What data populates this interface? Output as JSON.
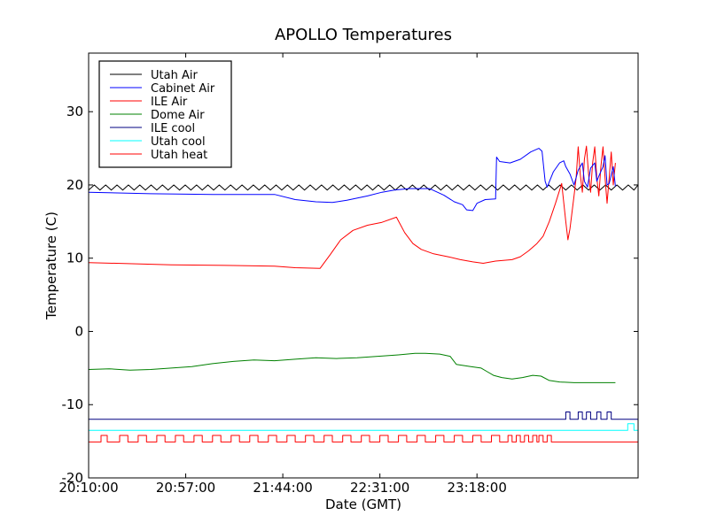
{
  "chart_data": {
    "type": "line",
    "title": "APOLLO Temperatures",
    "xlabel": "Date (GMT)",
    "ylabel": "Temperature (C)",
    "xlim": [
      0,
      266
    ],
    "ylim": [
      -20,
      38
    ],
    "x_ticks": [
      {
        "value": 0,
        "label": "20:10:00"
      },
      {
        "value": 47,
        "label": "20:57:00"
      },
      {
        "value": 94,
        "label": "21:44:00"
      },
      {
        "value": 141,
        "label": "22:31:00"
      },
      {
        "value": 188,
        "label": "23:18:00"
      }
    ],
    "y_ticks": [
      -20,
      -10,
      0,
      10,
      20,
      30
    ],
    "legend_position": "top-left",
    "series": [
      {
        "name": "Utah Air",
        "color": "#000000",
        "kind": "sawtooth",
        "x_start": 0,
        "x_end": 266,
        "period": 5.5,
        "low": 19.3,
        "high": 20.0
      },
      {
        "name": "Cabinet Air",
        "color": "#0000ff",
        "points": [
          [
            0,
            19.0
          ],
          [
            30,
            18.8
          ],
          [
            60,
            18.7
          ],
          [
            90,
            18.7
          ],
          [
            100,
            18.0
          ],
          [
            110,
            17.7
          ],
          [
            118,
            17.6
          ],
          [
            125,
            17.9
          ],
          [
            135,
            18.5
          ],
          [
            142,
            19.0
          ],
          [
            148,
            19.3
          ],
          [
            155,
            19.5
          ],
          [
            165,
            19.5
          ],
          [
            172,
            18.6
          ],
          [
            177,
            17.7
          ],
          [
            181,
            17.3
          ],
          [
            183,
            16.6
          ],
          [
            186,
            16.5
          ],
          [
            188,
            17.5
          ],
          [
            192,
            18.0
          ],
          [
            197,
            18.1
          ],
          [
            197.5,
            23.8
          ],
          [
            199,
            23.2
          ],
          [
            204,
            23.0
          ],
          [
            209,
            23.5
          ],
          [
            214,
            24.5
          ],
          [
            218,
            25.0
          ],
          [
            219.5,
            24.6
          ],
          [
            221,
            20.5
          ],
          [
            222,
            19.7
          ],
          [
            225,
            21.8
          ],
          [
            228,
            23.0
          ],
          [
            230,
            23.3
          ],
          [
            231,
            22.5
          ],
          [
            233,
            21.5
          ],
          [
            235,
            20.0
          ],
          [
            237,
            22.0
          ],
          [
            239,
            23.0
          ],
          [
            240,
            20.5
          ],
          [
            241.5,
            19.7
          ],
          [
            243,
            22.3
          ],
          [
            245,
            23.0
          ],
          [
            246,
            20.5
          ],
          [
            247,
            21.2
          ],
          [
            249,
            22.5
          ],
          [
            250,
            24.0
          ],
          [
            251,
            20.0
          ],
          [
            252,
            20.2
          ],
          [
            254,
            22.5
          ],
          [
            255,
            19.8
          ]
        ]
      },
      {
        "name": "ILE Air",
        "color": "#ff0000",
        "points": [
          [
            0,
            9.4
          ],
          [
            40,
            9.1
          ],
          [
            70,
            9.0
          ],
          [
            90,
            8.9
          ],
          [
            100,
            8.7
          ],
          [
            112,
            8.6
          ],
          [
            117,
            10.5
          ],
          [
            122,
            12.5
          ],
          [
            128,
            13.8
          ],
          [
            135,
            14.5
          ],
          [
            142,
            14.9
          ],
          [
            149,
            15.6
          ],
          [
            153,
            13.5
          ],
          [
            157,
            12.0
          ],
          [
            161,
            11.2
          ],
          [
            167,
            10.6
          ],
          [
            174,
            10.2
          ],
          [
            180,
            9.8
          ],
          [
            186,
            9.5
          ],
          [
            191,
            9.3
          ],
          [
            197,
            9.6
          ],
          [
            205,
            9.8
          ],
          [
            209,
            10.2
          ],
          [
            213,
            11.0
          ],
          [
            217,
            12.0
          ],
          [
            220,
            13.0
          ],
          [
            223,
            15.0
          ],
          [
            226,
            17.5
          ],
          [
            229,
            20.2
          ],
          [
            231,
            15.0
          ],
          [
            232,
            12.5
          ],
          [
            233,
            14.0
          ],
          [
            235,
            18.5
          ],
          [
            236,
            21.0
          ],
          [
            237,
            25.2
          ],
          [
            238,
            21.5
          ],
          [
            239,
            19.0
          ],
          [
            240,
            23.5
          ],
          [
            241,
            25.3
          ],
          [
            242,
            21.5
          ],
          [
            243,
            19.0
          ],
          [
            244,
            23.0
          ],
          [
            245,
            25.2
          ],
          [
            246,
            21.0
          ],
          [
            247,
            18.5
          ],
          [
            248,
            22.5
          ],
          [
            249,
            25.2
          ],
          [
            250,
            21.0
          ],
          [
            251,
            17.5
          ],
          [
            252,
            21.0
          ],
          [
            253,
            24.5
          ],
          [
            254,
            20.0
          ],
          [
            255,
            23.0
          ]
        ]
      },
      {
        "name": "Dome Air",
        "color": "#008000",
        "points": [
          [
            0,
            -5.2
          ],
          [
            10,
            -5.1
          ],
          [
            20,
            -5.3
          ],
          [
            30,
            -5.2
          ],
          [
            40,
            -5.0
          ],
          [
            50,
            -4.8
          ],
          [
            60,
            -4.4
          ],
          [
            70,
            -4.1
          ],
          [
            80,
            -3.9
          ],
          [
            90,
            -4.0
          ],
          [
            100,
            -3.8
          ],
          [
            110,
            -3.6
          ],
          [
            120,
            -3.7
          ],
          [
            130,
            -3.6
          ],
          [
            140,
            -3.4
          ],
          [
            150,
            -3.2
          ],
          [
            158,
            -3.0
          ],
          [
            163,
            -3.0
          ],
          [
            170,
            -3.1
          ],
          [
            175,
            -3.4
          ],
          [
            178,
            -4.5
          ],
          [
            185,
            -4.8
          ],
          [
            190,
            -5.0
          ],
          [
            193,
            -5.5
          ],
          [
            196,
            -6.0
          ],
          [
            200,
            -6.3
          ],
          [
            205,
            -6.5
          ],
          [
            210,
            -6.3
          ],
          [
            215,
            -6.0
          ],
          [
            219,
            -6.1
          ],
          [
            223,
            -6.7
          ],
          [
            228,
            -6.9
          ],
          [
            235,
            -7.0
          ],
          [
            245,
            -7.0
          ],
          [
            255,
            -7.0
          ]
        ]
      },
      {
        "name": "ILE cool",
        "color": "#000080",
        "kind": "step",
        "base": -12.0,
        "high": -11.0,
        "x_start": 0,
        "x_end": 266,
        "pulses": [
          [
            231,
            233
          ],
          [
            237,
            239
          ],
          [
            241,
            243
          ],
          [
            246,
            248
          ],
          [
            251,
            253
          ]
        ]
      },
      {
        "name": "Utah cool",
        "color": "#00ffff",
        "kind": "step",
        "base": -13.5,
        "high": -12.6,
        "x_start": 0,
        "x_end": 266,
        "pulses": [
          [
            261,
            264
          ]
        ]
      },
      {
        "name": "Utah heat",
        "color": "#ff0000",
        "kind": "step",
        "base": -15.1,
        "high": -14.2,
        "x_start": 0,
        "x_end": 266,
        "pulses": [
          [
            6,
            9
          ],
          [
            15,
            19
          ],
          [
            24,
            28
          ],
          [
            33,
            37
          ],
          [
            42,
            46
          ],
          [
            51,
            55
          ],
          [
            60,
            64
          ],
          [
            69,
            73
          ],
          [
            78,
            82
          ],
          [
            87,
            91
          ],
          [
            96,
            100
          ],
          [
            105,
            109
          ],
          [
            114,
            118
          ],
          [
            123,
            127
          ],
          [
            132,
            136
          ],
          [
            141,
            145
          ],
          [
            150,
            154
          ],
          [
            159,
            163
          ],
          [
            168,
            172
          ],
          [
            177,
            181
          ],
          [
            186,
            190
          ],
          [
            195,
            199
          ],
          [
            203,
            205
          ],
          [
            207,
            209
          ],
          [
            211,
            213
          ],
          [
            215,
            217
          ],
          [
            218,
            220
          ],
          [
            222,
            224
          ]
        ]
      }
    ]
  }
}
